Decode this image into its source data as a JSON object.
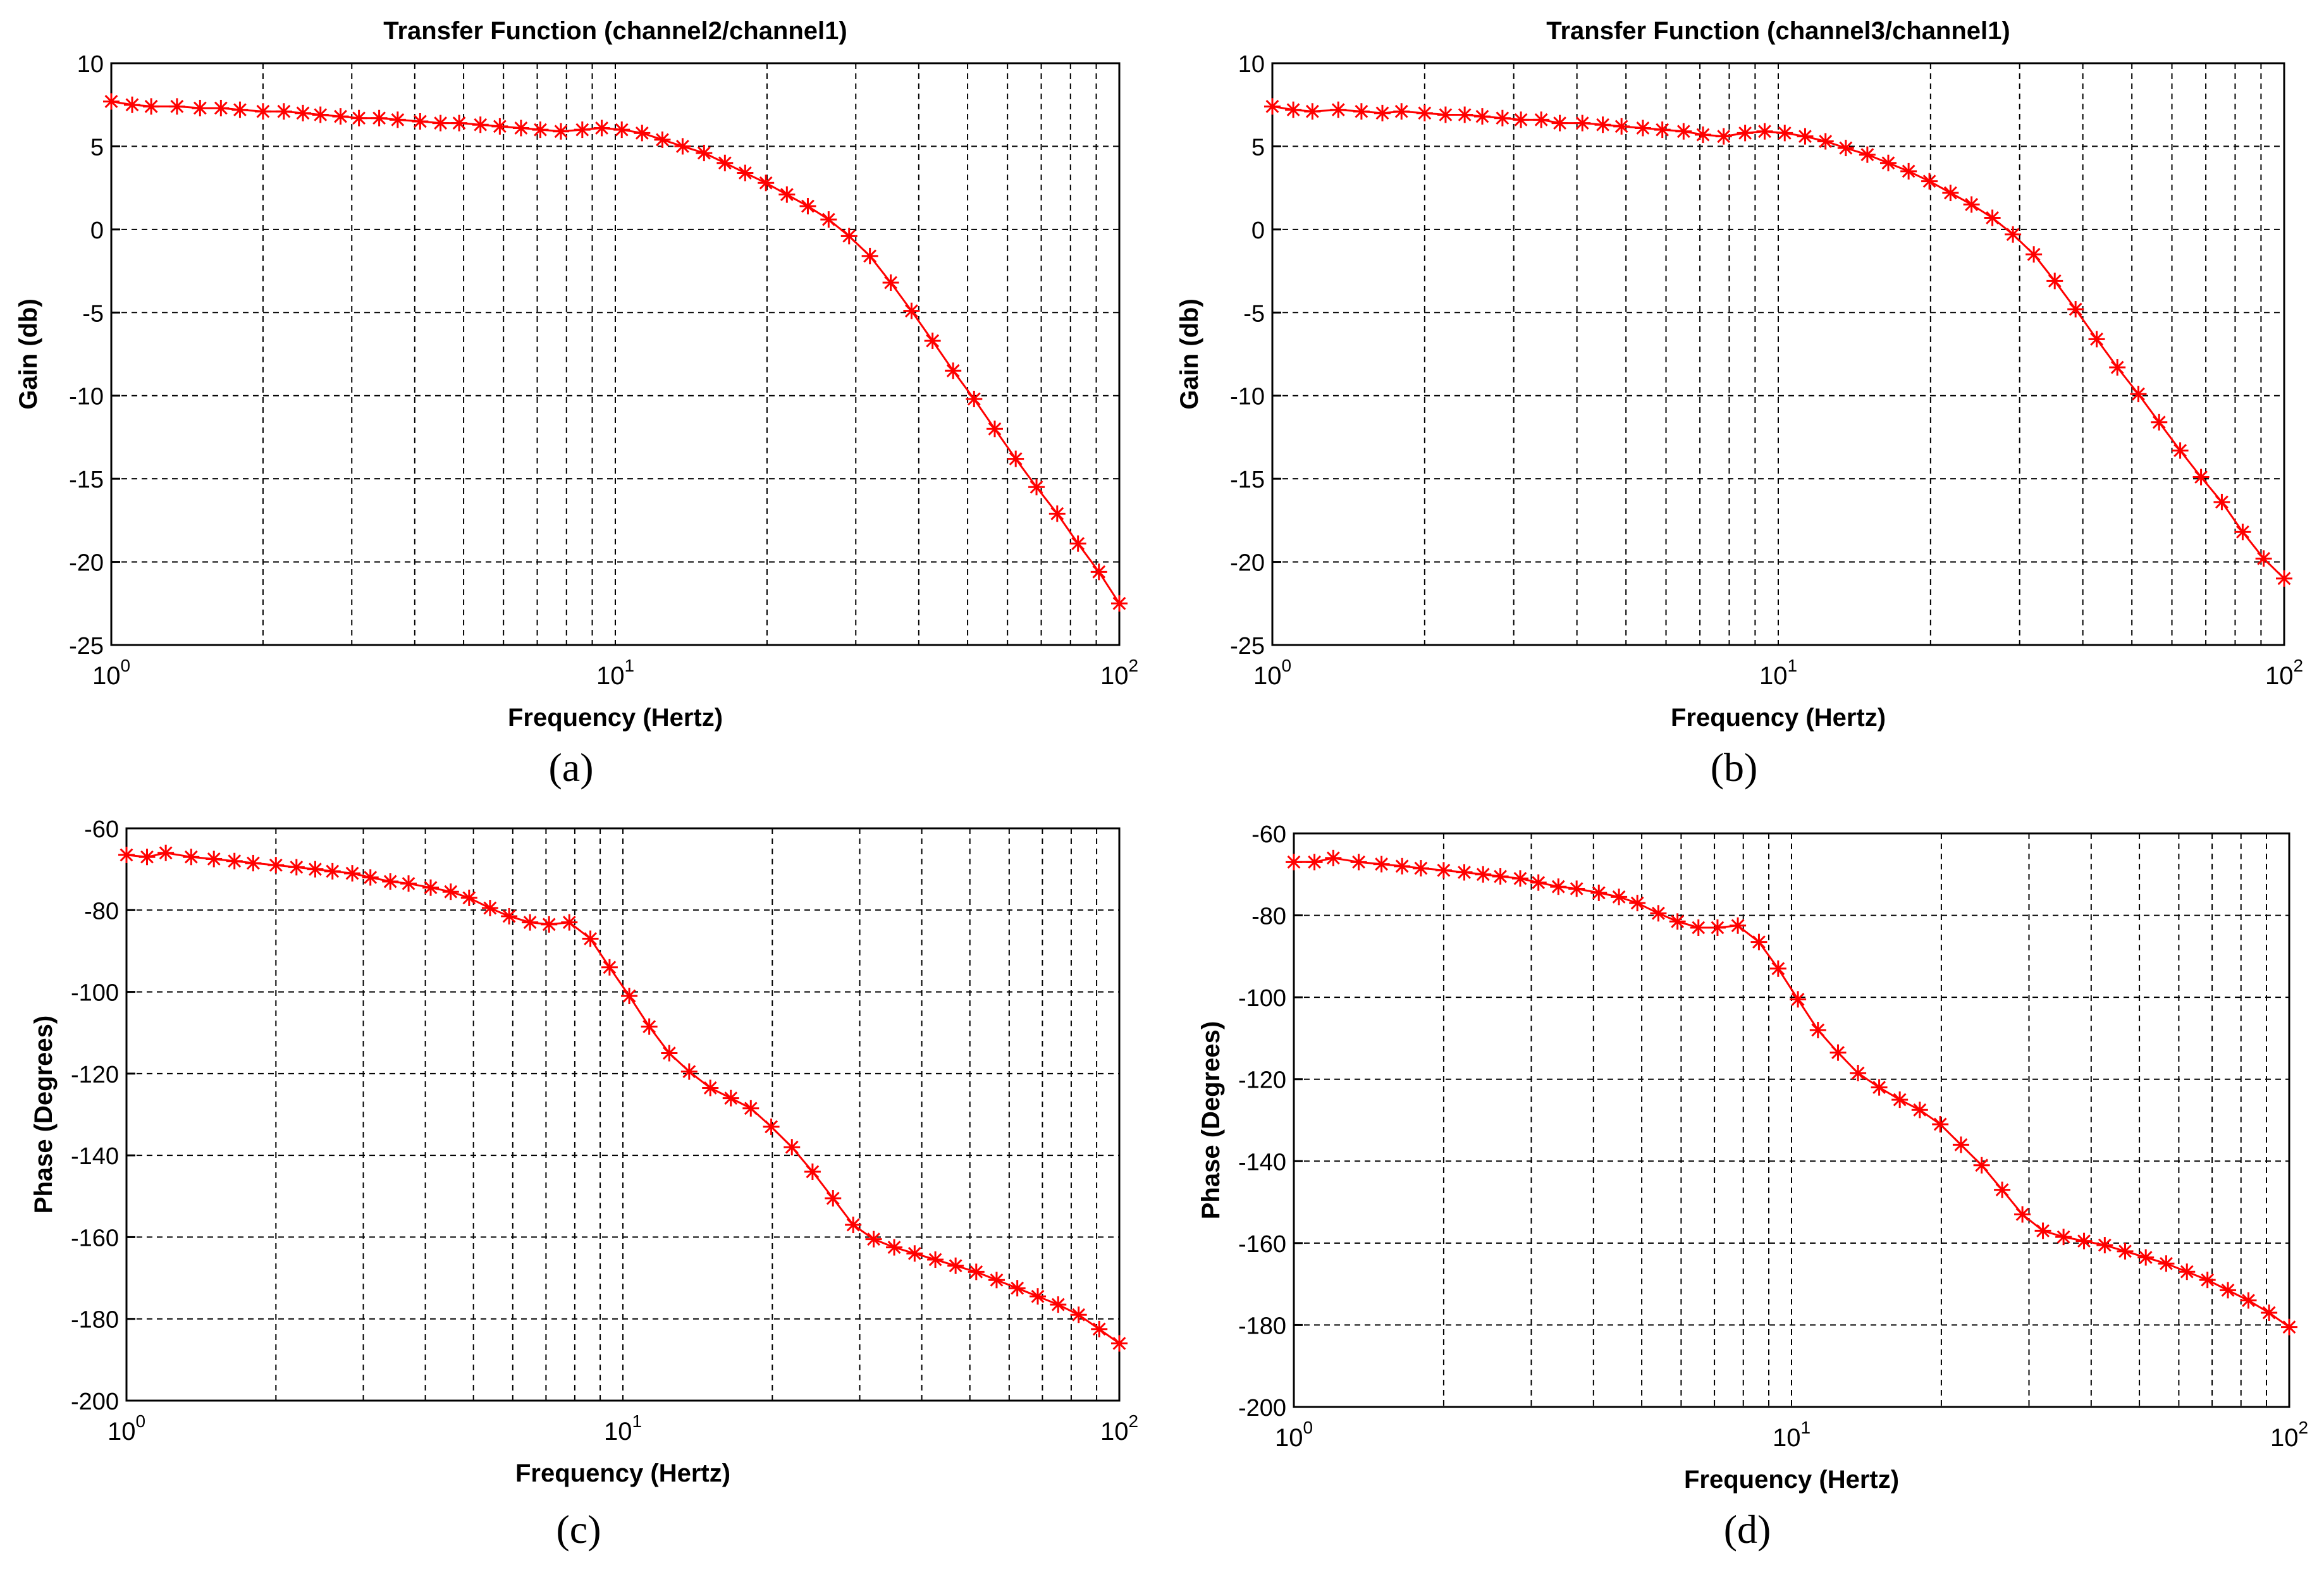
{
  "colors": {
    "series": "#ff0000",
    "grid": "#000000",
    "axis": "#000000",
    "background": "#ffffff"
  },
  "chart_data": [
    {
      "type": "line",
      "panel_label": "(a)",
      "title": "Transfer Function (channel2/channel1)",
      "xlabel": "Frequency (Hertz)",
      "ylabel": "Gain (db)",
      "xscale": "log",
      "xlim": [
        1,
        100
      ],
      "ylim": [
        -25,
        10
      ],
      "grid": true,
      "x_ticks": [
        {
          "value": 1,
          "base": "10",
          "exp": "0"
        },
        {
          "value": 10,
          "base": "10",
          "exp": "1"
        },
        {
          "value": 100,
          "base": "10",
          "exp": "2"
        }
      ],
      "y_ticks": [
        10,
        5,
        0,
        -5,
        -10,
        -15,
        -20,
        -25
      ],
      "series": [
        {
          "name": "channel2/channel1",
          "marker": "asterisk",
          "x": [
            1.0,
            1.1,
            1.2,
            1.35,
            1.5,
            1.65,
            1.8,
            2.0,
            2.2,
            2.4,
            2.6,
            2.85,
            3.1,
            3.4,
            3.7,
            4.1,
            4.5,
            4.9,
            5.4,
            5.9,
            6.5,
            7.1,
            7.8,
            8.6,
            9.4,
            10.3,
            11.3,
            12.4,
            13.6,
            15.0,
            16.5,
            18.1,
            19.9,
            21.9,
            24.1,
            26.5,
            29.1,
            32.0,
            35.2,
            38.7,
            42.6,
            46.8,
            51.5,
            56.6,
            62.3,
            68.5,
            75.3,
            82.8,
            91.1,
            100.0
          ],
          "y": [
            7.7,
            7.5,
            7.4,
            7.4,
            7.3,
            7.3,
            7.2,
            7.1,
            7.1,
            7.0,
            6.9,
            6.8,
            6.7,
            6.7,
            6.6,
            6.5,
            6.4,
            6.4,
            6.3,
            6.2,
            6.1,
            6.0,
            5.9,
            6.0,
            6.1,
            6.0,
            5.8,
            5.4,
            5.0,
            4.6,
            4.0,
            3.4,
            2.8,
            2.1,
            1.4,
            0.6,
            -0.4,
            -1.6,
            -3.2,
            -4.9,
            -6.7,
            -8.5,
            -10.2,
            -12.0,
            -13.8,
            -15.5,
            -17.1,
            -18.9,
            -20.6,
            -22.5
          ]
        }
      ]
    },
    {
      "type": "line",
      "panel_label": "(b)",
      "title": "Transfer Function (channel3/channel1)",
      "xlabel": "Frequency (Hertz)",
      "ylabel": "Gain (db)",
      "xscale": "log",
      "xlim": [
        1,
        100
      ],
      "ylim": [
        -25,
        10
      ],
      "grid": true,
      "x_ticks": [
        {
          "value": 1,
          "base": "10",
          "exp": "0"
        },
        {
          "value": 10,
          "base": "10",
          "exp": "1"
        },
        {
          "value": 100,
          "base": "10",
          "exp": "2"
        }
      ],
      "y_ticks": [
        10,
        5,
        0,
        -5,
        -10,
        -15,
        -20,
        -25
      ],
      "series": [
        {
          "name": "channel3/channel1",
          "marker": "asterisk",
          "x": [
            1.0,
            1.1,
            1.2,
            1.35,
            1.5,
            1.65,
            1.8,
            2.0,
            2.2,
            2.4,
            2.6,
            2.85,
            3.1,
            3.4,
            3.7,
            4.1,
            4.5,
            4.9,
            5.4,
            5.9,
            6.5,
            7.1,
            7.8,
            8.6,
            9.4,
            10.3,
            11.3,
            12.4,
            13.6,
            15.0,
            16.5,
            18.1,
            19.9,
            21.9,
            24.1,
            26.5,
            29.1,
            32.0,
            35.2,
            38.7,
            42.6,
            46.8,
            51.5,
            56.6,
            62.3,
            68.5,
            75.3,
            82.8,
            91.1,
            100.0
          ],
          "y": [
            7.4,
            7.2,
            7.1,
            7.2,
            7.1,
            7.0,
            7.1,
            7.0,
            6.9,
            6.9,
            6.8,
            6.7,
            6.6,
            6.6,
            6.4,
            6.4,
            6.3,
            6.2,
            6.1,
            6.0,
            5.9,
            5.7,
            5.6,
            5.8,
            5.9,
            5.8,
            5.6,
            5.3,
            4.9,
            4.5,
            4.0,
            3.5,
            2.9,
            2.2,
            1.5,
            0.7,
            -0.3,
            -1.5,
            -3.1,
            -4.8,
            -6.6,
            -8.3,
            -9.9,
            -11.6,
            -13.3,
            -14.9,
            -16.4,
            -18.2,
            -19.8,
            -21.0
          ]
        }
      ]
    },
    {
      "type": "line",
      "panel_label": "(c)",
      "title": "",
      "xlabel": "Frequency (Hertz)",
      "ylabel": "Phase (Degrees)",
      "xscale": "log",
      "xlim": [
        1,
        100
      ],
      "ylim": [
        -200,
        -60
      ],
      "grid": true,
      "x_ticks": [
        {
          "value": 1,
          "base": "10",
          "exp": "0"
        },
        {
          "value": 10,
          "base": "10",
          "exp": "1"
        },
        {
          "value": 100,
          "base": "10",
          "exp": "2"
        }
      ],
      "y_ticks": [
        -60,
        -80,
        -100,
        -120,
        -140,
        -160,
        -180,
        -200
      ],
      "series": [
        {
          "name": "channel2/channel1",
          "marker": "asterisk",
          "x": [
            1.0,
            1.1,
            1.2,
            1.35,
            1.5,
            1.65,
            1.8,
            2.0,
            2.2,
            2.4,
            2.6,
            2.85,
            3.1,
            3.4,
            3.7,
            4.1,
            4.5,
            4.9,
            5.4,
            5.9,
            6.5,
            7.1,
            7.8,
            8.6,
            9.4,
            10.3,
            11.3,
            12.4,
            13.6,
            15.0,
            16.5,
            18.1,
            19.9,
            21.9,
            24.1,
            26.5,
            29.1,
            32.0,
            35.2,
            38.7,
            42.6,
            46.8,
            51.5,
            56.6,
            62.3,
            68.5,
            75.3,
            82.8,
            91.1,
            100.0
          ],
          "y": [
            -66.5,
            -67.0,
            -66.0,
            -67.0,
            -67.5,
            -68.0,
            -68.5,
            -69.0,
            -69.5,
            -70.0,
            -70.5,
            -71.0,
            -72.0,
            -73.0,
            -73.5,
            -74.5,
            -75.5,
            -77.0,
            -79.5,
            -81.5,
            -83.0,
            -83.5,
            -83.0,
            -87.0,
            -94.0,
            -101.0,
            -108.5,
            -115.0,
            -119.5,
            -123.5,
            -126.0,
            -128.5,
            -133.0,
            -138.0,
            -144.0,
            -150.5,
            -157.0,
            -160.5,
            -162.5,
            -164.0,
            -165.5,
            -167.0,
            -168.5,
            -170.5,
            -172.5,
            -174.5,
            -176.5,
            -179.0,
            -182.5,
            -186.0
          ]
        }
      ]
    },
    {
      "type": "line",
      "panel_label": "(d)",
      "title": "",
      "xlabel": "Frequency (Hertz)",
      "ylabel": "Phase (Degrees)",
      "xscale": "log",
      "xlim": [
        1,
        100
      ],
      "ylim": [
        -200,
        -60
      ],
      "grid": true,
      "x_ticks": [
        {
          "value": 1,
          "base": "10",
          "exp": "0"
        },
        {
          "value": 10,
          "base": "10",
          "exp": "1"
        },
        {
          "value": 100,
          "base": "10",
          "exp": "2"
        }
      ],
      "y_ticks": [
        -60,
        -80,
        -100,
        -120,
        -140,
        -160,
        -180,
        -200
      ],
      "series": [
        {
          "name": "channel3/channel1",
          "marker": "asterisk",
          "x": [
            1.0,
            1.1,
            1.2,
            1.35,
            1.5,
            1.65,
            1.8,
            2.0,
            2.2,
            2.4,
            2.6,
            2.85,
            3.1,
            3.4,
            3.7,
            4.1,
            4.5,
            4.9,
            5.4,
            5.9,
            6.5,
            7.1,
            7.8,
            8.6,
            9.4,
            10.3,
            11.3,
            12.4,
            13.6,
            15.0,
            16.5,
            18.1,
            19.9,
            21.9,
            24.1,
            26.5,
            29.1,
            32.0,
            35.2,
            38.7,
            42.6,
            46.8,
            51.5,
            56.6,
            62.3,
            68.5,
            75.3,
            82.8,
            91.1,
            100.0
          ],
          "y": [
            -67.0,
            -67.0,
            -66.0,
            -67.0,
            -67.5,
            -68.0,
            -68.5,
            -69.0,
            -69.5,
            -70.0,
            -70.5,
            -71.0,
            -72.0,
            -73.0,
            -73.5,
            -74.5,
            -75.5,
            -77.0,
            -79.5,
            -81.5,
            -83.0,
            -83.0,
            -82.5,
            -86.5,
            -93.0,
            -100.5,
            -108.0,
            -113.5,
            -118.5,
            -122.0,
            -125.0,
            -127.5,
            -131.0,
            -136.0,
            -141.0,
            -147.0,
            -153.0,
            -157.0,
            -158.5,
            -159.5,
            -160.5,
            -162.0,
            -163.5,
            -165.0,
            -167.0,
            -169.0,
            -171.5,
            -174.0,
            -177.0,
            -180.5
          ]
        }
      ]
    }
  ]
}
